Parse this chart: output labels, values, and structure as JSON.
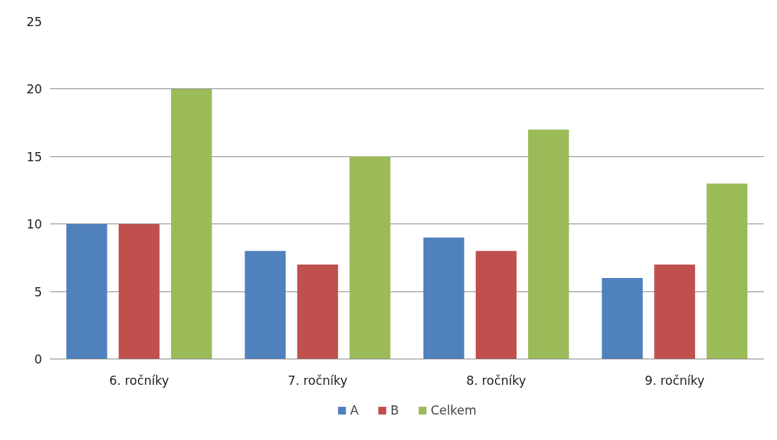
{
  "chart_data": {
    "type": "bar",
    "categories": [
      "6. ročníky",
      "7. ročníky",
      "8. ročníky",
      "9. ročníky"
    ],
    "series": [
      {
        "name": "A",
        "color": "#4f81bd",
        "values": [
          10,
          8,
          9,
          6
        ]
      },
      {
        "name": "B",
        "color": "#c0504d",
        "values": [
          10,
          7,
          8,
          7
        ]
      },
      {
        "name": "Celkem",
        "color": "#9bbb59",
        "values": [
          20,
          15,
          17,
          13
        ]
      }
    ],
    "ylim": [
      0,
      25
    ],
    "yticks": [
      0,
      5,
      10,
      15,
      20,
      25
    ],
    "grid": "y",
    "legend": "bottom"
  }
}
